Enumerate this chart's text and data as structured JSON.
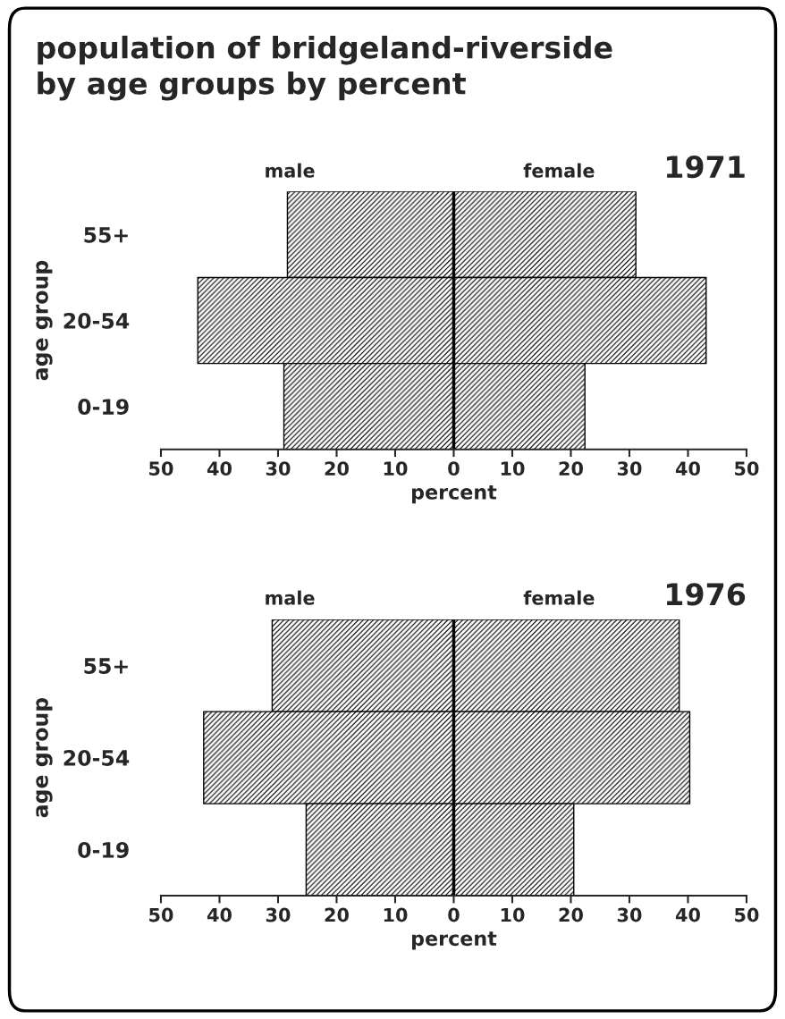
{
  "chart_data": [
    {
      "type": "bar",
      "orientation": "horizontal",
      "title": "population of bridgeland-riverside\nby age groups by percent",
      "xlabel": "percent",
      "ylabel": "age group",
      "annotations": [
        "1971"
      ],
      "categories": [
        "55+",
        "20-54",
        "0-19"
      ],
      "series": [
        {
          "name": "male",
          "color": "#000000",
          "values": [
            -28.4,
            -43.7,
            -29.0
          ]
        },
        {
          "name": "female",
          "color": "#000000",
          "values": [
            31.1,
            43.1,
            22.4
          ]
        }
      ],
      "stacked": true,
      "xlim": [
        -50,
        50
      ],
      "xticks": [
        {
          "value": -50,
          "label": "50"
        },
        {
          "value": -40,
          "label": "40"
        },
        {
          "value": -30,
          "label": "30"
        },
        {
          "value": -20,
          "label": "20"
        },
        {
          "value": -10,
          "label": "10"
        },
        0,
        10,
        20,
        30,
        40,
        50
      ],
      "ref_lines": [
        {
          "axis": "x",
          "value": 0,
          "color": "#000000"
        }
      ],
      "grid": false,
      "legend": false
    },
    {
      "type": "bar",
      "orientation": "horizontal",
      "xlabel": "percent",
      "ylabel": "age group",
      "annotations": [
        "1976"
      ],
      "categories": [
        "55+",
        "20-54",
        "0-19"
      ],
      "series": [
        {
          "name": "male",
          "color": "#000000",
          "values": [
            -31.0,
            -42.7,
            -25.2
          ]
        },
        {
          "name": "female",
          "color": "#000000",
          "values": [
            38.5,
            40.3,
            20.5
          ]
        }
      ],
      "stacked": true,
      "xlim": [
        -50,
        50
      ],
      "xticks": [
        {
          "value": -50,
          "label": "50"
        },
        {
          "value": -40,
          "label": "40"
        },
        {
          "value": -30,
          "label": "30"
        },
        {
          "value": -20,
          "label": "20"
        },
        {
          "value": -10,
          "label": "10"
        },
        0,
        10,
        20,
        30,
        40,
        50
      ],
      "ref_lines": [
        {
          "axis": "x",
          "value": 0,
          "color": "#000000"
        }
      ],
      "grid": false,
      "legend": false
    }
  ]
}
